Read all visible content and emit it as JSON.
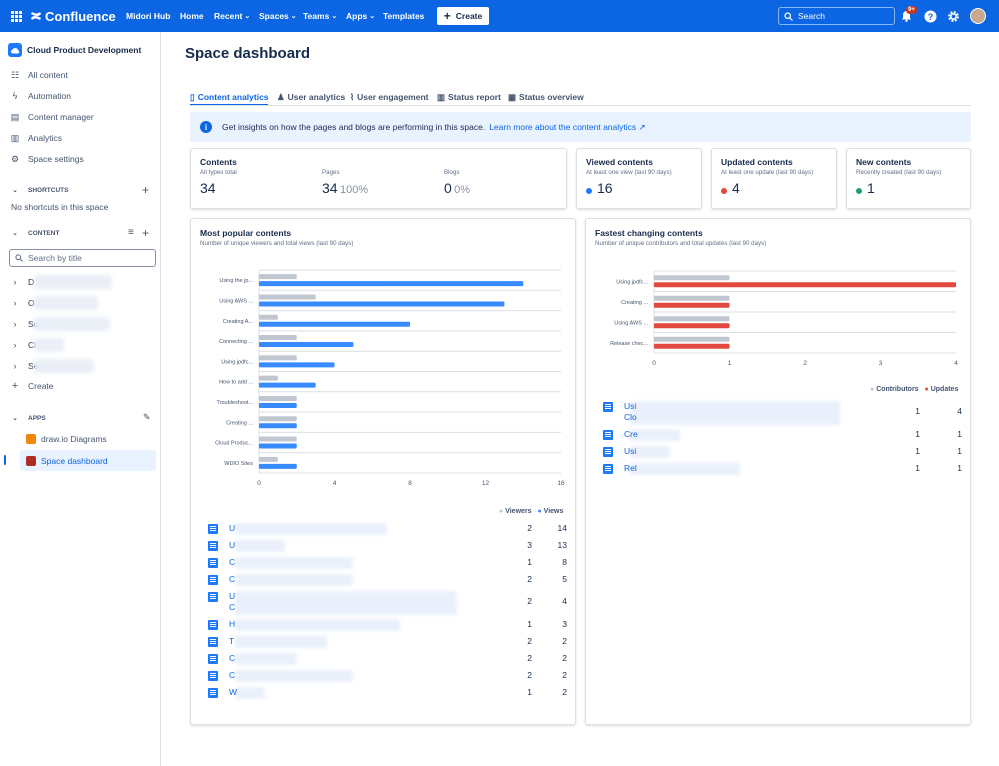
{
  "topbar": {
    "product": "Confluence",
    "nav": [
      "Midori Hub",
      "Home",
      "Recent",
      "Spaces",
      "Teams",
      "Apps",
      "Templates"
    ],
    "create_label": "Create",
    "search_placeholder": "Search",
    "notif_badge": "9+"
  },
  "sidebar": {
    "space_name": "Cloud Product Development",
    "items": [
      "All content",
      "Automation",
      "Content manager",
      "Analytics",
      "Space settings"
    ],
    "shortcuts_title": "SHORTCUTS",
    "no_shortcuts": "No shortcuts in this space",
    "content_title": "CONTENT",
    "search_placeholder": "Search by title",
    "tree_initials": [
      "D",
      "O",
      "Su",
      "Cl",
      "Se"
    ],
    "create_label": "Create",
    "apps_title": "APPS",
    "apps": [
      "draw.io Diagrams",
      "Space dashboard"
    ]
  },
  "page": {
    "title": "Space dashboard",
    "tabs": [
      "Content analytics",
      "User analytics",
      "User engagement",
      "Status report",
      "Status overview"
    ],
    "banner_text": "Get insights on how the pages and blogs are performing in this space.",
    "banner_link": "Learn more about the content analytics ↗"
  },
  "summary": {
    "contents_title": "Contents",
    "contents_sub": "All types total",
    "contents_value": "34",
    "pages_label": "Pages",
    "pages_value": "34",
    "pages_pct": "100%",
    "blogs_label": "Blogs",
    "blogs_value": "0",
    "blogs_pct": "0%",
    "viewed_title": "Viewed contents",
    "viewed_sub": "At least one view (last 90 days)",
    "viewed_value": "16",
    "updated_title": "Updated contents",
    "updated_sub": "At least one update (last 90 days)",
    "updated_value": "4",
    "new_title": "New contents",
    "new_sub": "Recently created (last 90 days)",
    "new_value": "1"
  },
  "popular": {
    "title": "Most popular contents",
    "subtitle": "Number of unique viewers and total views (last 90 days)",
    "legend": [
      "Viewers",
      "Views"
    ],
    "rows_initials": [
      "U",
      "U",
      "C",
      "C",
      "U",
      "H",
      "T",
      "C",
      "C",
      "W"
    ],
    "row2_initial": "C"
  },
  "fastest": {
    "title": "Fastest changing contents",
    "subtitle": "Number of unique contributors and total updates (last 90 days)",
    "legend": [
      "Contributors",
      "Updates"
    ],
    "rows": [
      {
        "text": "Usi",
        "text2": "Clo"
      },
      {
        "text": "Cre"
      },
      {
        "text": "Usi"
      },
      {
        "text": "Rel"
      }
    ]
  },
  "colors": {
    "blue": "#388bff",
    "gray": "#c1c7d0",
    "red": "#e2483d",
    "green": "#22a06b",
    "brand": "#0c66e4"
  },
  "chart_data": [
    {
      "type": "bar",
      "orientation": "horizontal",
      "categories": [
        "Using the jp...",
        "Using AWS ...",
        "Creating A...",
        "Connecting ...",
        "Using jpdfc...",
        "How to add ...",
        "Troubleshoot...",
        "Creating ...",
        "Cloud Produc...",
        "WDIO Sites"
      ],
      "series": [
        {
          "name": "Viewers",
          "color": "#c1c7d0",
          "values": [
            2,
            3,
            1,
            2,
            2,
            1,
            2,
            2,
            2,
            1
          ]
        },
        {
          "name": "Views",
          "color": "#388bff",
          "values": [
            14,
            13,
            8,
            5,
            4,
            3,
            2,
            2,
            2,
            2
          ]
        }
      ],
      "xlim": [
        0,
        16
      ],
      "xticks": [
        0,
        4,
        8,
        12,
        16
      ]
    },
    {
      "type": "bar",
      "orientation": "horizontal",
      "categories": [
        "Using jpdfc...",
        "Creating ...",
        "Using AWS ...",
        "Release chec..."
      ],
      "series": [
        {
          "name": "Contributors",
          "color": "#c1c7d0",
          "values": [
            1,
            1,
            1,
            1
          ]
        },
        {
          "name": "Updates",
          "color": "#e2483d",
          "values": [
            4,
            1,
            1,
            1
          ]
        }
      ],
      "xlim": [
        0,
        4
      ],
      "xticks": [
        0,
        1,
        2,
        3,
        4
      ]
    }
  ]
}
